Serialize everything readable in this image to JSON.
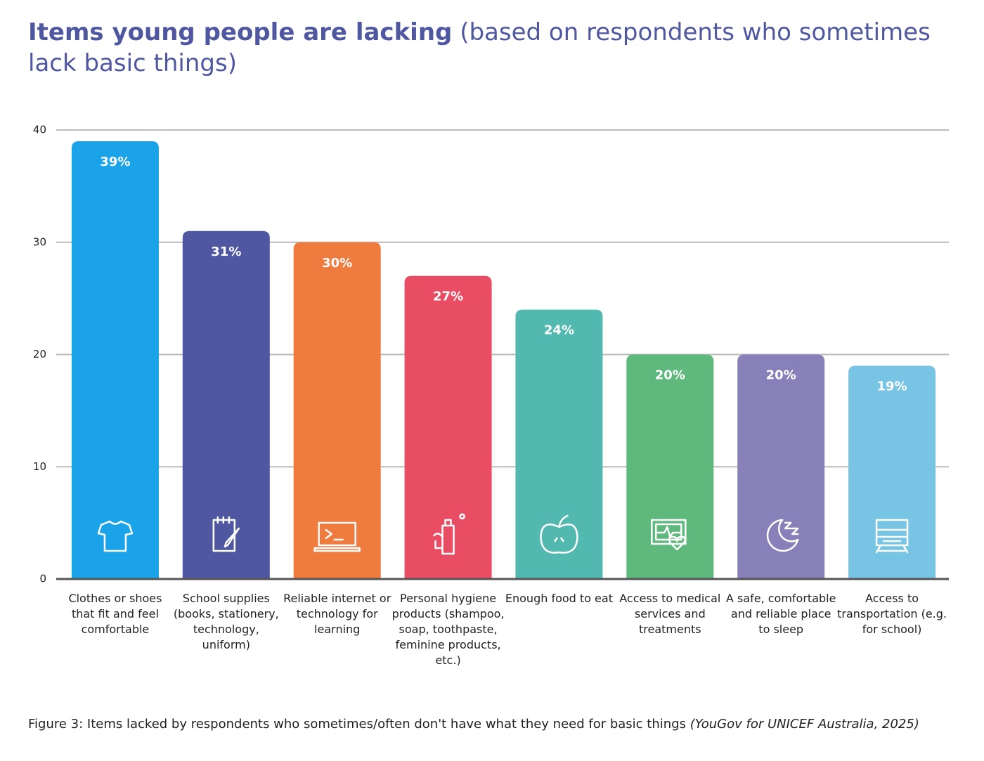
{
  "chart_data": {
    "type": "bar",
    "title": "Items young people are lacking",
    "subtitle": "(based on respondents who sometimes lack basic things)",
    "categories": [
      "Clothes or shoes that fit and feel comfortable",
      "School supplies (books, stationery, technology, uniform)",
      "Reliable internet or technology for learning",
      "Personal hygiene products (shampoo, soap, toothpaste, feminine products, etc.)",
      "Enough food to eat",
      "Access to medical services and treatments",
      "A safe, comfortable and reliable place to sleep",
      "Access to transportation (e.g. for school)"
    ],
    "values": [
      39,
      31,
      30,
      27,
      24,
      20,
      20,
      19
    ],
    "value_labels": [
      "39%",
      "31%",
      "30%",
      "27%",
      "24%",
      "20%",
      "20%",
      "19%"
    ],
    "colors": [
      "#1aa3e8",
      "#4f57a0",
      "#f07b3f",
      "#e84d63",
      "#52b8b0",
      "#5fb87c",
      "#8880b8",
      "#78c4e4"
    ],
    "ylim": [
      0,
      40
    ],
    "yticks": [
      0,
      10,
      20,
      30,
      40
    ],
    "grid": true,
    "caption": "Figure 3: Items lacked by respondents who sometimes/often don't have what they need for basic things",
    "source": "(YouGov for UNICEF Australia, 2025)"
  }
}
